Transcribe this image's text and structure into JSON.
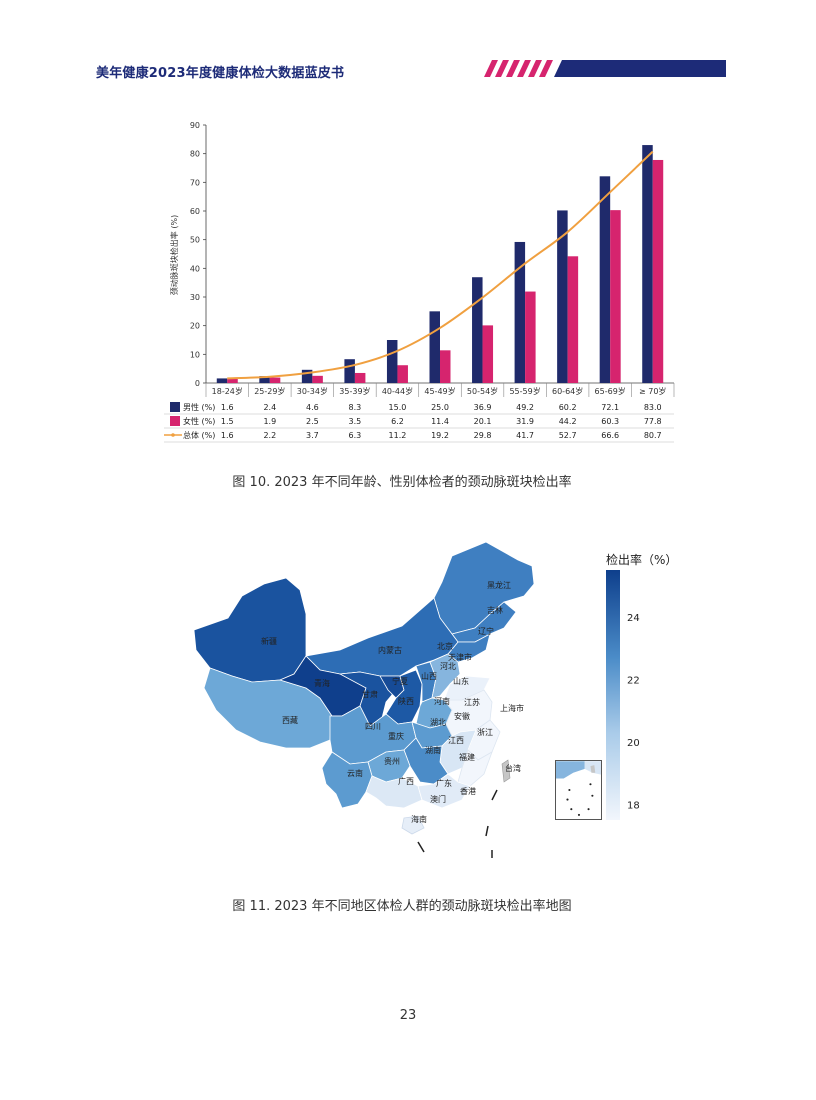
{
  "header": {
    "title": "美年健康2023年度健康体检大数据蓝皮书",
    "colors": {
      "navy": "#1d2b78",
      "magenta": "#d6246e"
    }
  },
  "chart_data": [
    {
      "type": "bar",
      "ylabel": "颈动脉斑块检出率 (%)",
      "ylim": [
        0,
        90
      ],
      "yticks": [
        0,
        10,
        20,
        30,
        40,
        50,
        60,
        70,
        80,
        90
      ],
      "categories": [
        "18-24岁",
        "25-29岁",
        "30-34岁",
        "35-39岁",
        "40-44岁",
        "45-49岁",
        "50-54岁",
        "55-59岁",
        "60-64岁",
        "65-69岁",
        "≥ 70岁"
      ],
      "series": [
        {
          "name": "男性 (%)",
          "type": "bar",
          "color": "#1f2a6b",
          "values": [
            1.6,
            2.4,
            4.6,
            8.3,
            15.0,
            25.0,
            36.9,
            49.2,
            60.2,
            72.1,
            83.0
          ],
          "labels": [
            "1.6",
            "2.4",
            "4.6",
            "8.3",
            "15.0",
            "25.0",
            "36.9",
            "49.2",
            "60.2",
            "72.1",
            "83.0"
          ]
        },
        {
          "name": "女性 (%)",
          "type": "bar",
          "color": "#d6246e",
          "values": [
            1.5,
            1.9,
            2.5,
            3.5,
            6.2,
            11.4,
            20.1,
            31.9,
            44.2,
            60.3,
            77.8
          ],
          "labels": [
            "1.5",
            "1.9",
            "2.5",
            "3.5",
            "6.2",
            "11.4",
            "20.1",
            "31.9",
            "44.2",
            "60.3",
            "77.8"
          ]
        },
        {
          "name": "总体 (%)",
          "type": "line",
          "color": "#f0a040",
          "values": [
            1.6,
            2.2,
            3.7,
            6.3,
            11.2,
            19.2,
            29.8,
            41.7,
            52.7,
            66.6,
            80.7
          ],
          "labels": [
            "1.6",
            "2.2",
            "3.7",
            "6.3",
            "11.2",
            "19.2",
            "29.8",
            "41.7",
            "52.7",
            "66.6",
            "80.7"
          ]
        }
      ],
      "grid": false,
      "legend": "table-below"
    },
    {
      "type": "heatmap",
      "legend_title": "检出率（%）",
      "colorbar_ticks": [
        18,
        20,
        22,
        24
      ],
      "colorbar_range": [
        17.5,
        25.5
      ],
      "colors": {
        "low": "#f2f6fc",
        "high": "#0e3f8c"
      },
      "region_labels": [
        "黑龙江",
        "吉林",
        "辽宁",
        "北京",
        "天津市",
        "内蒙古",
        "河北",
        "山西",
        "山东",
        "新疆",
        "青海",
        "宁夏",
        "甘肃",
        "陕西",
        "河南",
        "江苏",
        "上海市",
        "安徽",
        "湖北",
        "西藏",
        "四川",
        "重庆",
        "浙江",
        "江西",
        "湖南",
        "贵州",
        "福建",
        "台湾",
        "云南",
        "广西",
        "广东",
        "香港",
        "澳门",
        "海南"
      ]
    }
  ],
  "captions": {
    "fig10": "图 10. 2023 年不同年龄、性别体检者的颈动脉斑块检出率",
    "fig11": "图 11. 2023 年不同地区体检人群的颈动脉斑块检出率地图"
  },
  "page_number": "23"
}
